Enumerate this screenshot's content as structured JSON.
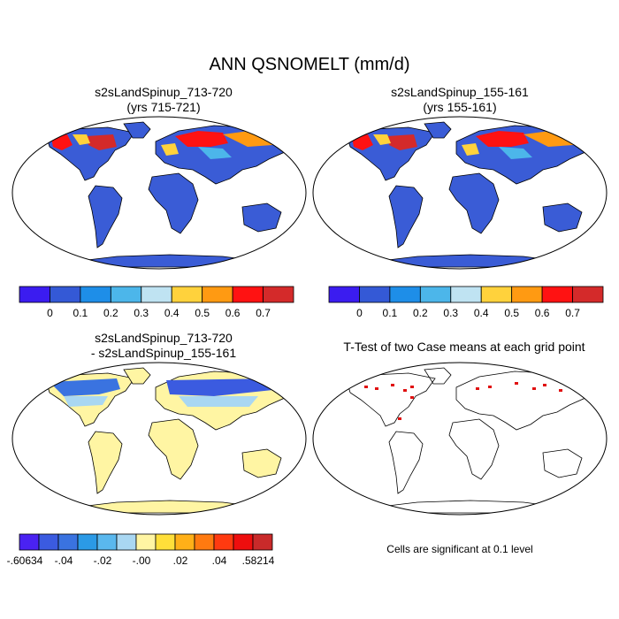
{
  "main_title": "ANN QSNOMELT (mm/d)",
  "panels": [
    {
      "title_line1": "s2sLandSpinup_713-720",
      "title_line2": "(yrs 715-721)"
    },
    {
      "title_line1": "s2sLandSpinup_155-161",
      "title_line2": "(yrs 155-161)"
    },
    {
      "title_line1": "s2sLandSpinup_713-720",
      "title_line2": "- s2sLandSpinup_155-161"
    },
    {
      "title_line1": "T-Test of two Case means at each grid point",
      "title_line2": ""
    }
  ],
  "colorbar_top": {
    "colors": [
      "#3b1cf0",
      "#3459d6",
      "#1e8ee8",
      "#4cb6ea",
      "#bfe3f2",
      "#ffd23c",
      "#ff9a12",
      "#ff1212",
      "#d42a2a"
    ],
    "labels": [
      "0",
      "0.1",
      "0.2",
      "0.3",
      "0.4",
      "0.5",
      "0.6",
      "0.7"
    ]
  },
  "colorbar_diff": {
    "colors": [
      "#4a22f2",
      "#3b5be0",
      "#3a73e0",
      "#2b9ae6",
      "#5ab8ee",
      "#a9d7f2",
      "#fff5a3",
      "#ffdf3a",
      "#ffb018",
      "#ff7a10",
      "#ff3a10",
      "#ee0e0e",
      "#c92a2a"
    ],
    "labels": [
      "-.60634",
      "-.04",
      "-.02",
      "-.00",
      ".02",
      ".04",
      ".58214"
    ]
  },
  "significance_note": "Cells are significant at 0.1 level",
  "colors": {
    "land_low": "#3a5cd6",
    "ocean": "#ffffff",
    "diff_land": "#fff5a3",
    "signif": "#e01010"
  }
}
